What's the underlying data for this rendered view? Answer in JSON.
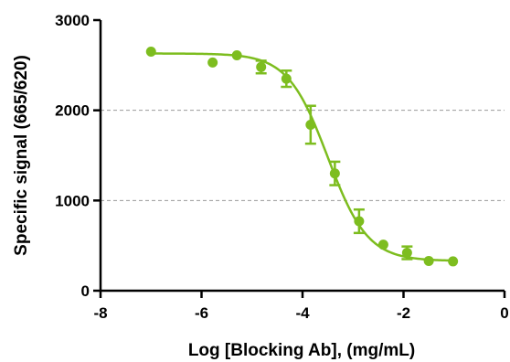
{
  "chart_data": {
    "type": "scatter",
    "title": "",
    "xlabel": "Log [Blocking Ab], (mg/mL)",
    "ylabel": "Specific signal (665/620)",
    "xlim": [
      -8,
      0
    ],
    "ylim": [
      0,
      3000
    ],
    "x_ticks": [
      -8,
      -6,
      -4,
      -2,
      0
    ],
    "y_ticks": [
      0,
      1000,
      2000,
      3000
    ],
    "y_gridlines": [
      1000,
      2000
    ],
    "grid": "dashed horizontal at 1000 and 2000",
    "color": "#7dbd1f",
    "series": [
      {
        "points": [
          {
            "x": -7.0,
            "y": 2650,
            "err": 0
          },
          {
            "x": -5.78,
            "y": 2530,
            "err": 0
          },
          {
            "x": -5.3,
            "y": 2610,
            "err": 0
          },
          {
            "x": -4.82,
            "y": 2480,
            "err": 70
          },
          {
            "x": -4.32,
            "y": 2350,
            "err": 90
          },
          {
            "x": -3.84,
            "y": 1840,
            "err": 210
          },
          {
            "x": -3.36,
            "y": 1300,
            "err": 130
          },
          {
            "x": -2.88,
            "y": 770,
            "err": 130
          },
          {
            "x": -2.4,
            "y": 510,
            "err": 0
          },
          {
            "x": -1.93,
            "y": 420,
            "err": 70
          },
          {
            "x": -1.5,
            "y": 330,
            "err": 0
          },
          {
            "x": -1.02,
            "y": 325,
            "err": 0
          }
        ],
        "fit": {
          "type": "4PL",
          "top": 2630,
          "bottom": 330,
          "logIC50": -3.5,
          "hill": 1.1,
          "x_range": [
            -7.0,
            -1.0
          ]
        }
      }
    ]
  }
}
